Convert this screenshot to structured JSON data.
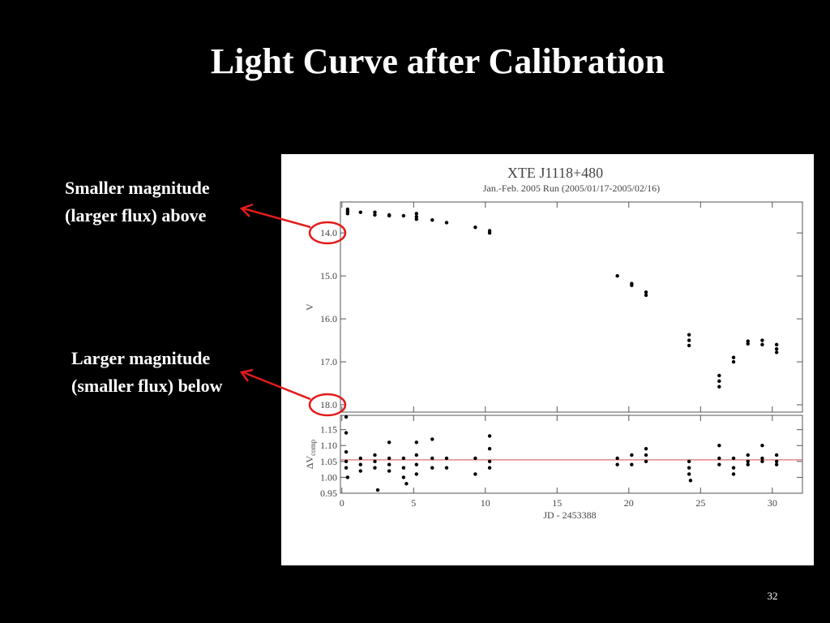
{
  "slide": {
    "title": "Light Curve after Calibration",
    "annotations": [
      [
        "Smaller magnitude",
        "(larger flux) above"
      ],
      [
        "Larger magnitude",
        "(smaller flux) below"
      ]
    ],
    "page_number": "32"
  },
  "chart_data": [
    {
      "type": "scatter",
      "title": "XTE J1118+480",
      "subtitle": "Jan.-Feb. 2005 Run (2005/01/17-2005/02/16)",
      "y_label": "V",
      "color": "#000000",
      "x": [
        0.4,
        0.4,
        0.4,
        1.3,
        2.3,
        2.3,
        3.3,
        3.3,
        4.3,
        5.2,
        5.2,
        5.2,
        6.3,
        7.3,
        9.3,
        10.3,
        10.3,
        19.2,
        20.2,
        20.2,
        21.2,
        21.2,
        24.2,
        24.2,
        24.2,
        26.3,
        26.3,
        26.3,
        27.3,
        27.3,
        28.3,
        28.3,
        29.3,
        29.3,
        30.3,
        30.3,
        30.3
      ],
      "values": [
        13.45,
        13.5,
        13.55,
        13.52,
        13.52,
        13.58,
        13.58,
        13.6,
        13.6,
        13.55,
        13.62,
        13.68,
        13.7,
        13.76,
        13.87,
        13.95,
        14.0,
        15.0,
        15.18,
        15.22,
        15.38,
        15.45,
        16.37,
        16.5,
        16.62,
        17.32,
        17.45,
        17.58,
        16.9,
        17.0,
        16.52,
        16.58,
        16.5,
        16.6,
        16.6,
        16.7,
        16.78
      ],
      "xlim": [
        -0.1,
        32.1
      ],
      "xticks": [
        0,
        5,
        10,
        15,
        20,
        25,
        30
      ],
      "x_tick_labels": false,
      "ylim": [
        13.28,
        18.17
      ],
      "y_inverted": true,
      "yticks": [
        {
          "value": 14,
          "label": "14.0"
        },
        {
          "value": 15,
          "label": "15.0"
        },
        {
          "value": 16,
          "label": "16.0"
        },
        {
          "value": 17,
          "label": "17.0"
        },
        {
          "value": 18,
          "label": "18.0"
        }
      ]
    },
    {
      "type": "scatter",
      "y_label": "ΔV",
      "y_label_sub": "comp",
      "x_label": "JD - 2453388",
      "color": "#000000",
      "x": [
        0.3,
        0.3,
        0.3,
        0.3,
        0.3,
        0.4,
        1.3,
        1.3,
        1.3,
        2.3,
        2.3,
        2.3,
        2.5,
        3.3,
        3.3,
        3.3,
        3.3,
        4.3,
        4.3,
        4.3,
        4.5,
        5.2,
        5.2,
        5.2,
        5.2,
        6.3,
        6.3,
        6.3,
        7.3,
        7.3,
        9.3,
        9.3,
        10.3,
        10.3,
        10.3,
        10.3,
        19.2,
        19.2,
        20.2,
        20.2,
        21.2,
        21.2,
        21.2,
        24.2,
        24.2,
        24.2,
        24.3,
        26.3,
        26.3,
        26.3,
        27.3,
        27.3,
        27.3,
        28.3,
        28.3,
        28.3,
        29.3,
        29.3,
        29.3,
        30.3,
        30.3,
        30.3
      ],
      "values": [
        1.19,
        1.14,
        1.08,
        1.05,
        1.03,
        1.0,
        1.06,
        1.04,
        1.02,
        1.07,
        1.05,
        1.03,
        0.96,
        1.11,
        1.06,
        1.04,
        1.02,
        1.06,
        1.03,
        1.0,
        0.98,
        1.11,
        1.07,
        1.04,
        1.01,
        1.12,
        1.06,
        1.03,
        1.06,
        1.03,
        1.06,
        1.01,
        1.13,
        1.09,
        1.05,
        1.03,
        1.06,
        1.04,
        1.07,
        1.04,
        1.09,
        1.07,
        1.05,
        1.05,
        1.03,
        1.01,
        0.99,
        1.1,
        1.06,
        1.04,
        1.06,
        1.03,
        1.01,
        1.07,
        1.05,
        1.04,
        1.1,
        1.06,
        1.05,
        1.07,
        1.05,
        1.04
      ],
      "xlim": [
        -0.1,
        32.1
      ],
      "xticks": [
        0,
        5,
        10,
        15,
        20,
        25,
        30
      ],
      "x_tick_labels": true,
      "ylim": [
        0.95,
        1.195
      ],
      "yticks": [
        0.95,
        {
          "value": 1,
          "label": "1.00"
        },
        1.05,
        {
          "value": 1.1,
          "label": "1.10"
        },
        1.15
      ],
      "hline": {
        "value": 1.055,
        "color": "#d9736f"
      }
    }
  ]
}
